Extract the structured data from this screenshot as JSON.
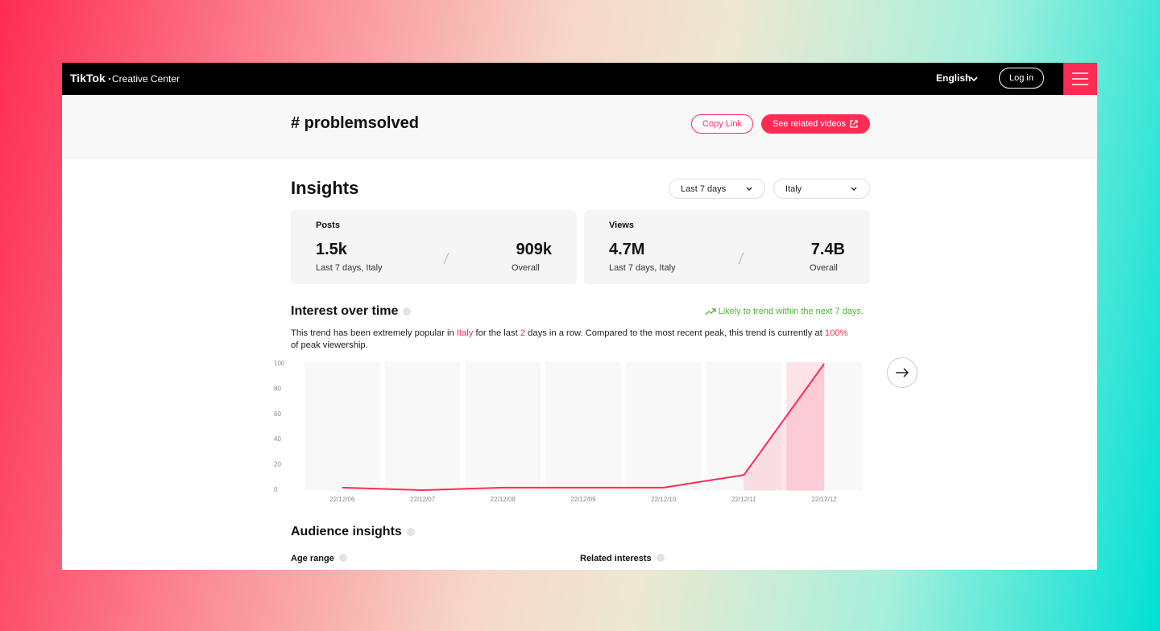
{
  "nav": {
    "logo": "TikTok",
    "logo_sub": "Creative Center",
    "language": "English",
    "login": "Log in"
  },
  "header": {
    "title": "# problemsolved",
    "copy_link": "Copy Link",
    "related_videos": "See related videos"
  },
  "insights": {
    "title": "Insights",
    "period": "Last 7 days",
    "country": "Italy",
    "cards": [
      {
        "label": "Posts",
        "recent_value": "1.5k",
        "recent_caption": "Last 7 days, Italy",
        "overall_value": "909k",
        "overall_caption": "Overall"
      },
      {
        "label": "Views",
        "recent_value": "4.7M",
        "recent_caption": "Last 7 days, Italy",
        "overall_value": "7.4B",
        "overall_caption": "Overall"
      }
    ]
  },
  "interest": {
    "title": "Interest over time",
    "trend_note": "Likely to trend within the next 7 days.",
    "description": [
      "This trend has been extremely popular in ",
      "Italy",
      " for the last ",
      "2",
      " days in a row. Compared to the most recent peak, this trend is currently at ",
      "100%",
      " of peak viewership."
    ]
  },
  "chart_data": {
    "type": "line",
    "categories": [
      "22/12/06",
      "22/12/07",
      "22/12/08",
      "22/12/09",
      "22/12/10",
      "22/12/11",
      "22/12/12"
    ],
    "series": [
      {
        "color": "#fe2c55",
        "values": [
          2,
          0,
          2,
          2,
          2,
          12,
          100
        ]
      }
    ],
    "ylim": [
      0,
      100
    ],
    "yticks": [
      0,
      20,
      40,
      60,
      80,
      100
    ]
  },
  "audience": {
    "title": "Audience insights",
    "age_range": "Age range",
    "related_interests": "Related interests"
  }
}
